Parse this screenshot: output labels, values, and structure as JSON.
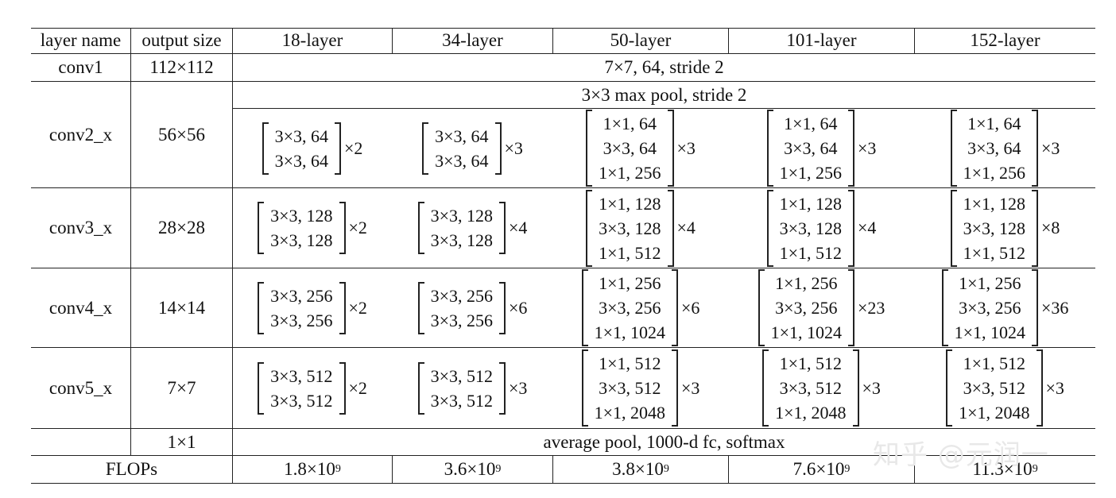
{
  "header": {
    "layer_name": "layer name",
    "output_size": "output size",
    "layers": [
      "18-layer",
      "34-layer",
      "50-layer",
      "101-layer",
      "152-layer"
    ]
  },
  "conv1": {
    "name": "conv1",
    "size": "112×112",
    "spec": "7×7, 64, stride 2"
  },
  "conv2": {
    "name": "conv2_x",
    "size": "56×56",
    "pool": "3×3 max pool, stride 2",
    "blocks": [
      {
        "lines": [
          "3×3, 64",
          "3×3, 64"
        ],
        "mult": "×2"
      },
      {
        "lines": [
          "3×3, 64",
          "3×3, 64"
        ],
        "mult": "×3"
      },
      {
        "lines": [
          "1×1, 64",
          "3×3, 64",
          "1×1, 256"
        ],
        "mult": "×3"
      },
      {
        "lines": [
          "1×1, 64",
          "3×3, 64",
          "1×1, 256"
        ],
        "mult": "×3"
      },
      {
        "lines": [
          "1×1, 64",
          "3×3, 64",
          "1×1, 256"
        ],
        "mult": "×3"
      }
    ]
  },
  "conv3": {
    "name": "conv3_x",
    "size": "28×28",
    "blocks": [
      {
        "lines": [
          "3×3, 128",
          "3×3, 128"
        ],
        "mult": "×2"
      },
      {
        "lines": [
          "3×3, 128",
          "3×3, 128"
        ],
        "mult": "×4"
      },
      {
        "lines": [
          "1×1, 128",
          "3×3, 128",
          "1×1, 512"
        ],
        "mult": "×4"
      },
      {
        "lines": [
          "1×1, 128",
          "3×3, 128",
          "1×1, 512"
        ],
        "mult": "×4"
      },
      {
        "lines": [
          "1×1, 128",
          "3×3, 128",
          "1×1, 512"
        ],
        "mult": "×8"
      }
    ]
  },
  "conv4": {
    "name": "conv4_x",
    "size": "14×14",
    "blocks": [
      {
        "lines": [
          "3×3, 256",
          "3×3, 256"
        ],
        "mult": "×2"
      },
      {
        "lines": [
          "3×3, 256",
          "3×3, 256"
        ],
        "mult": "×6"
      },
      {
        "lines": [
          "1×1, 256",
          "3×3, 256",
          "1×1, 1024"
        ],
        "mult": "×6"
      },
      {
        "lines": [
          "1×1, 256",
          "3×3, 256",
          "1×1, 1024"
        ],
        "mult": "×23"
      },
      {
        "lines": [
          "1×1, 256",
          "3×3, 256",
          "1×1, 1024"
        ],
        "mult": "×36"
      }
    ]
  },
  "conv5": {
    "name": "conv5_x",
    "size": "7×7",
    "blocks": [
      {
        "lines": [
          "3×3, 512",
          "3×3, 512"
        ],
        "mult": "×2"
      },
      {
        "lines": [
          "3×3, 512",
          "3×3, 512"
        ],
        "mult": "×3"
      },
      {
        "lines": [
          "1×1, 512",
          "3×3, 512",
          "1×1, 2048"
        ],
        "mult": "×3"
      },
      {
        "lines": [
          "1×1, 512",
          "3×3, 512",
          "1×1, 2048"
        ],
        "mult": "×3"
      },
      {
        "lines": [
          "1×1, 512",
          "3×3, 512",
          "1×1, 2048"
        ],
        "mult": "×3"
      }
    ]
  },
  "final": {
    "size": "1×1",
    "spec": "average pool, 1000-d fc, softmax"
  },
  "flops": {
    "label": "FLOPs",
    "values": [
      {
        "mantissa": "1.8×10",
        "exp": "9"
      },
      {
        "mantissa": "3.6×10",
        "exp": "9"
      },
      {
        "mantissa": "3.8×10",
        "exp": "9"
      },
      {
        "mantissa": "7.6×10",
        "exp": "9"
      },
      {
        "mantissa": "11.3×10",
        "exp": "9"
      }
    ]
  },
  "watermark": "知乎 @元润一"
}
